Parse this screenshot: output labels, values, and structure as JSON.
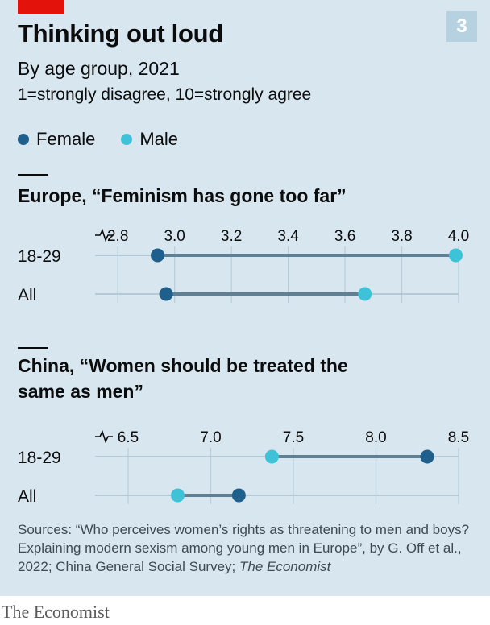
{
  "header": {
    "chart_number": "3",
    "title": "Thinking out loud",
    "subtitle": "By age group, 2021",
    "scale_note": "1=strongly disagree, 10=strongly agree"
  },
  "legend": [
    {
      "label": "Female",
      "color": "#1f5f8b"
    },
    {
      "label": "Male",
      "color": "#3ec2d8"
    }
  ],
  "colors": {
    "female": "#1f5f8b",
    "male": "#3ec2d8",
    "connector": "#5f7f93",
    "grid": "#b9cdd8"
  },
  "chart_data": [
    {
      "type": "dumbbell",
      "title": "Europe, “Feminism has gone too far”",
      "xlim": [
        2.72,
        4.0
      ],
      "ticks": [
        "2.8",
        "3.0",
        "3.2",
        "3.4",
        "3.6",
        "3.8",
        "4.0"
      ],
      "categories": [
        "18-29",
        "All"
      ],
      "series": [
        {
          "name": "Female",
          "values": [
            2.94,
            2.97
          ]
        },
        {
          "name": "Male",
          "values": [
            3.99,
            3.67
          ]
        }
      ]
    },
    {
      "type": "dumbbell",
      "title": "China, “Women should be treated the same as men”",
      "xlim": [
        6.3,
        8.5
      ],
      "ticks": [
        "6.5",
        "7.0",
        "7.5",
        "8.0",
        "8.5"
      ],
      "categories": [
        "18-29",
        "All"
      ],
      "series": [
        {
          "name": "Female",
          "values": [
            8.31,
            7.17
          ]
        },
        {
          "name": "Male",
          "values": [
            7.37,
            6.8
          ]
        }
      ]
    }
  ],
  "footer": {
    "sources": "Sources: “Who perceives women’s rights as threatening to men and boys? Explaining modern sexism among young men in Europe”, by G. Off et al., 2022; China General Social Survey;",
    "sources_italic": "The Economist",
    "logo": "The Economist"
  }
}
